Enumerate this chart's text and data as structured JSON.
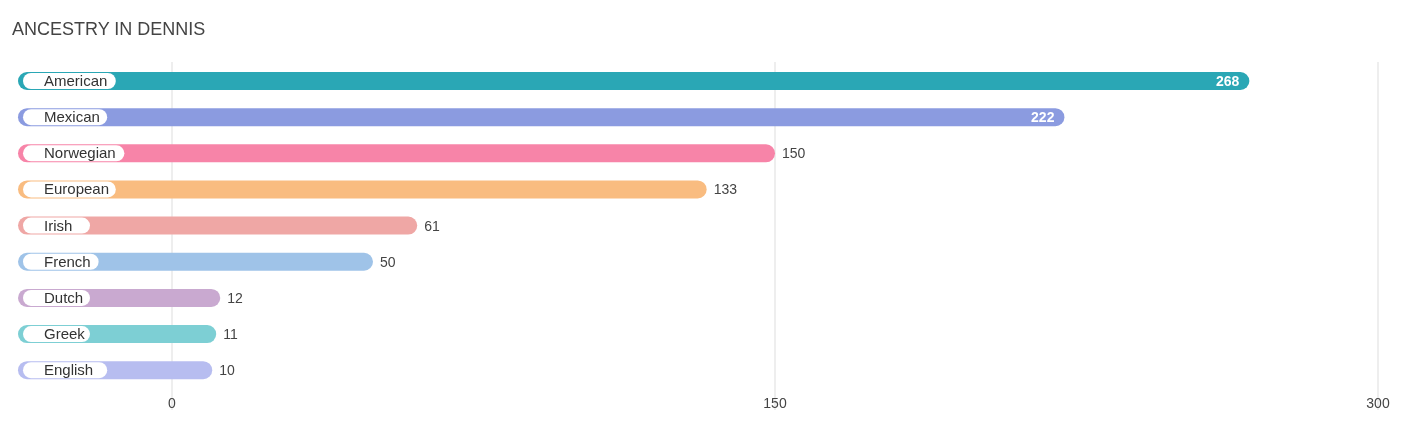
{
  "chart_data": {
    "type": "bar",
    "orientation": "horizontal",
    "title": "ANCESTRY IN DENNIS",
    "categories": [
      "American",
      "Mexican",
      "Norwegian",
      "European",
      "Irish",
      "French",
      "Dutch",
      "Greek",
      "English"
    ],
    "values": [
      268,
      222,
      150,
      133,
      61,
      50,
      12,
      11,
      10
    ],
    "colors": [
      "#2aa7b5",
      "#8b9be0",
      "#f784a8",
      "#f9bc80",
      "#efa7a5",
      "#9fc3e8",
      "#c9a9d0",
      "#7dcfd4",
      "#b7bdf0"
    ],
    "xlim": [
      0,
      300
    ],
    "xticks": [
      0,
      150,
      300
    ],
    "grid": "x",
    "data_labels": true
  }
}
